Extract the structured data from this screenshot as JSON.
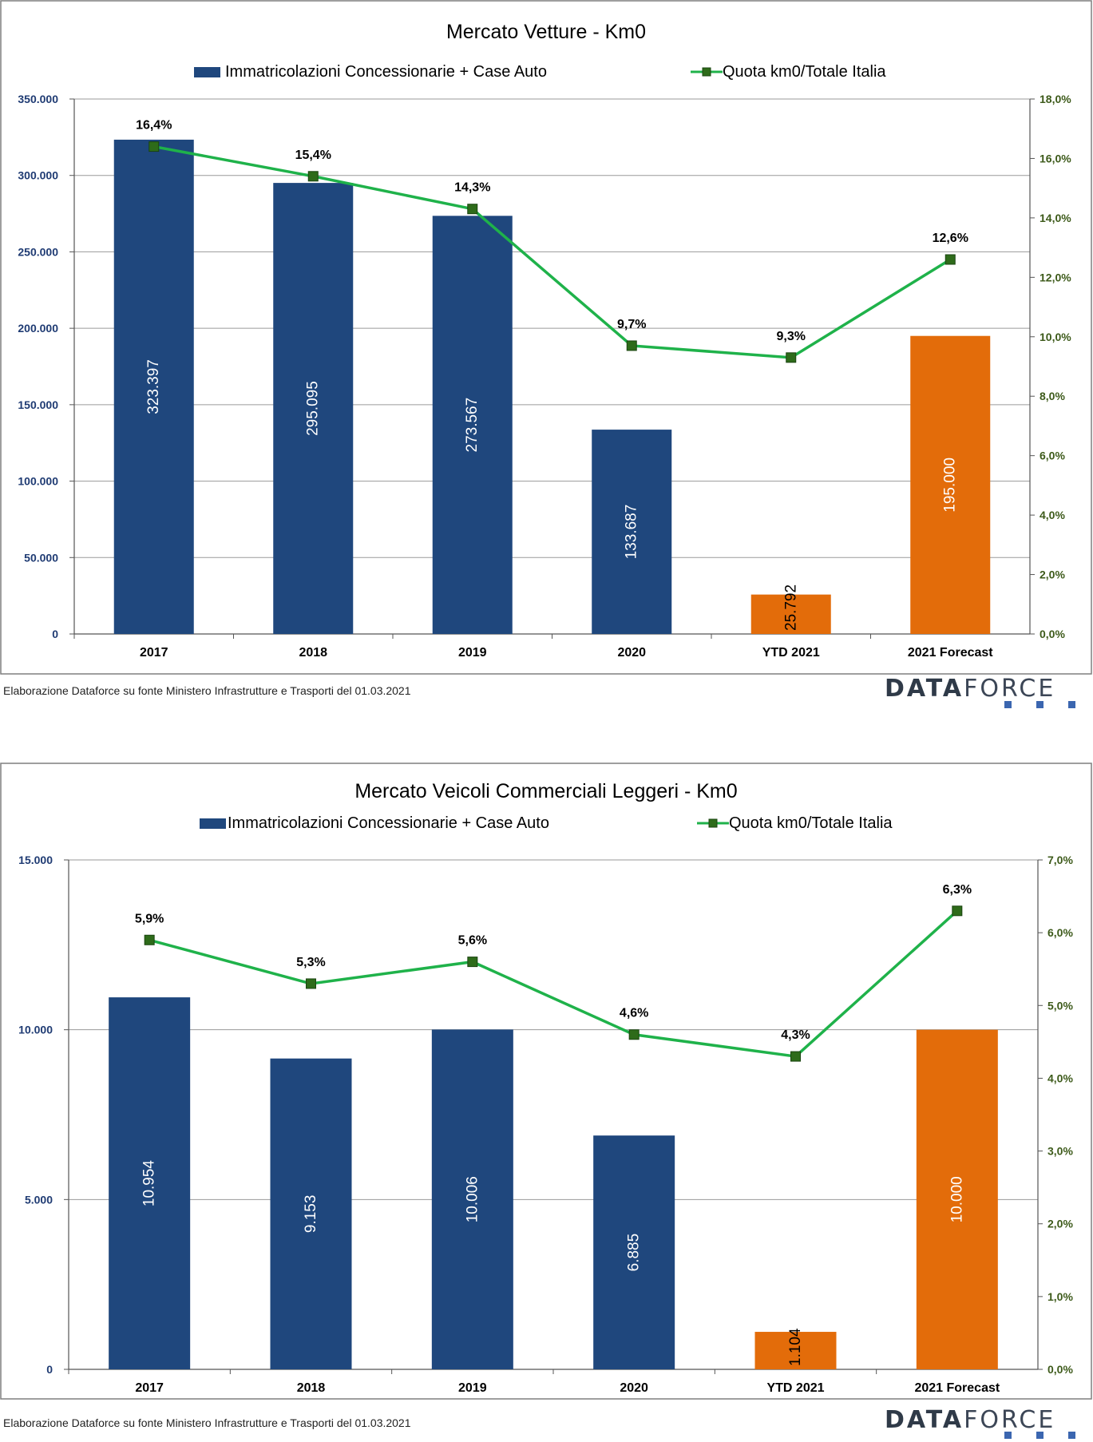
{
  "charts": [
    {
      "chart_data": {
        "type": "bar",
        "title": "Mercato Vetture - Km0",
        "categories": [
          "2017",
          "2018",
          "2019",
          "2020",
          "YTD 2021",
          "2021 Forecast"
        ],
        "series": [
          {
            "name": "Immatricolazioni Concessionarie + Case Auto",
            "type": "bar",
            "axis": "left",
            "values": [
              323397,
              295095,
              273567,
              133687,
              25792,
              195000
            ],
            "labels": [
              "323.397",
              "295.095",
              "273.567",
              "133.687",
              "25.792",
              "195.000"
            ],
            "colors": [
              "#1f477d",
              "#1f477d",
              "#1f477d",
              "#1f477d",
              "#e36c0a",
              "#e36c0a"
            ]
          },
          {
            "name": "Quota km0/Totale Italia",
            "type": "line",
            "axis": "right",
            "values": [
              16.4,
              15.4,
              14.3,
              9.7,
              9.3,
              12.6
            ],
            "labels": [
              "16,4%",
              "15,4%",
              "14,3%",
              "9,7%",
              "9,3%",
              "12,6%"
            ],
            "color": "#1fb24a"
          }
        ],
        "y_left": {
          "range": [
            0,
            350000
          ],
          "ticks": [
            "0",
            "50.000",
            "100.000",
            "150.000",
            "200.000",
            "250.000",
            "300.000",
            "350.000"
          ]
        },
        "y_right": {
          "range": [
            0,
            18
          ],
          "ticks": [
            "0,0%",
            "2,0%",
            "4,0%",
            "6,0%",
            "8,0%",
            "10,0%",
            "12,0%",
            "14,0%",
            "16,0%",
            "18,0%"
          ]
        },
        "grid": true,
        "legend": "top"
      },
      "source": "Elaborazione Dataforce su fonte Ministero Infrastrutture e Trasporti del 01.03.2021"
    },
    {
      "chart_data": {
        "type": "bar",
        "title": "Mercato Veicoli Commerciali Leggeri - Km0",
        "categories": [
          "2017",
          "2018",
          "2019",
          "2020",
          "YTD 2021",
          "2021 Forecast"
        ],
        "series": [
          {
            "name": "Immatricolazioni Concessionarie + Case Auto",
            "type": "bar",
            "axis": "left",
            "values": [
              10954,
              9153,
              10006,
              6885,
              1104,
              10000
            ],
            "labels": [
              "10.954",
              "9.153",
              "10.006",
              "6.885",
              "1.104",
              "10.000"
            ],
            "colors": [
              "#1f477d",
              "#1f477d",
              "#1f477d",
              "#1f477d",
              "#e36c0a",
              "#e36c0a"
            ]
          },
          {
            "name": "Quota km0/Totale Italia",
            "type": "line",
            "axis": "right",
            "values": [
              5.9,
              5.3,
              5.6,
              4.6,
              4.3,
              6.3
            ],
            "labels": [
              "5,9%",
              "5,3%",
              "5,6%",
              "4,6%",
              "4,3%",
              "6,3%"
            ],
            "color": "#1fb24a"
          }
        ],
        "y_left": {
          "range": [
            0,
            15000
          ],
          "ticks": [
            "0",
            "5.000",
            "10.000",
            "15.000"
          ]
        },
        "y_right": {
          "range": [
            0,
            7
          ],
          "ticks": [
            "0,0%",
            "1,0%",
            "2,0%",
            "3,0%",
            "4,0%",
            "5,0%",
            "6,0%",
            "7,0%"
          ]
        },
        "grid": true,
        "legend": "top"
      },
      "source": "Elaborazione Dataforce su fonte Ministero Infrastrutture e Trasporti del 01.03.2021"
    }
  ],
  "logo": {
    "bold": "DATA",
    "light": "FORCE"
  },
  "colors": {
    "bar_actual": "#1f477d",
    "bar_forecast": "#e36c0a",
    "line": "#1fb24a",
    "marker": "#2e6b1a",
    "left_axis_text": "#1f3b73",
    "right_axis_text": "#3d5a1a"
  }
}
